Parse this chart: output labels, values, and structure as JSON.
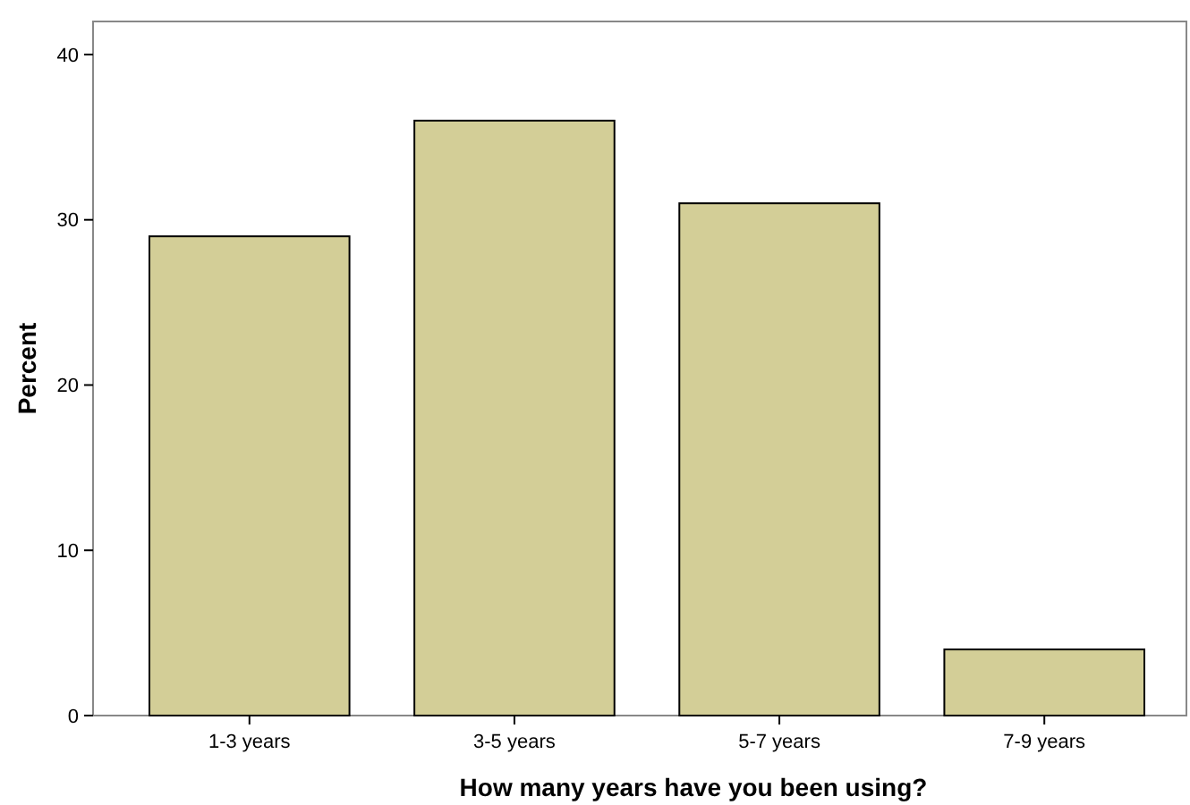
{
  "chart_data": {
    "type": "bar",
    "xlabel": "How many years have you been using?",
    "ylabel": "Percent",
    "categories": [
      "1-3 years",
      "3-5 years",
      "5-7 years",
      "7-9 years"
    ],
    "values": [
      29,
      36,
      31,
      4
    ],
    "color": "#d3ce97",
    "ylim": [
      0,
      42
    ],
    "yticks": [
      0,
      10,
      20,
      30,
      40
    ],
    "grid": false
  }
}
